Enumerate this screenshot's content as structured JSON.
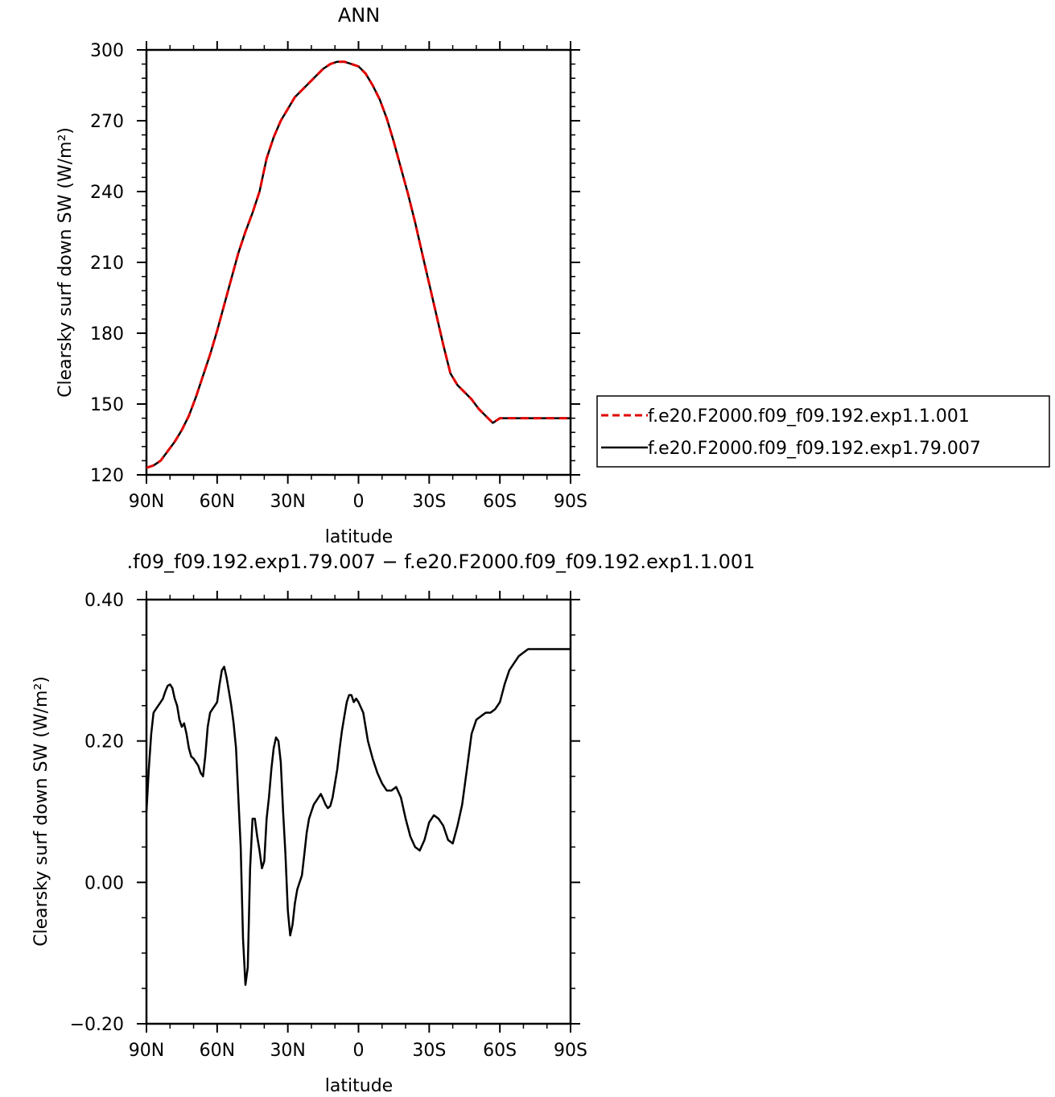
{
  "chart_data": [
    {
      "type": "line",
      "title": "ANN",
      "xlabel": "latitude",
      "ylabel": "Clearsky surf down SW (W/m²)",
      "xlim": [
        90,
        -90
      ],
      "ylim": [
        120,
        300
      ],
      "x_ticks": [
        90,
        60,
        30,
        0,
        -30,
        -60,
        -90
      ],
      "x_tick_labels": [
        "90N",
        "60N",
        "30N",
        "0",
        "30S",
        "60S",
        "90S"
      ],
      "y_ticks": [
        120,
        150,
        180,
        210,
        240,
        270,
        300
      ],
      "y_tick_labels": [
        "120",
        "150",
        "180",
        "210",
        "240",
        "270",
        "300"
      ],
      "grid": false,
      "legend_position": "right",
      "series": [
        {
          "name": "f.e20.F2000.f09_f09.192.exp1.1.001",
          "color": "#e00000",
          "style": "dashed",
          "x": [
            90,
            87,
            84,
            81,
            78,
            75,
            72,
            69,
            66,
            63,
            60,
            57,
            54,
            51,
            48,
            45,
            42,
            39,
            36,
            33,
            30,
            27,
            24,
            21,
            18,
            15,
            12,
            9,
            6,
            3,
            0,
            -3,
            -6,
            -9,
            -12,
            -15,
            -18,
            -21,
            -24,
            -27,
            -30,
            -33,
            -36,
            -39,
            -42,
            -45,
            -48,
            -51,
            -54,
            -57,
            -60,
            -63,
            -66,
            -69,
            -72,
            -75,
            -78,
            -81,
            -84,
            -87,
            -90
          ],
          "y": [
            123,
            124,
            126,
            130,
            134,
            139,
            145,
            153,
            162,
            171,
            181,
            192,
            203,
            214,
            223,
            231,
            240,
            254,
            263,
            270,
            275,
            280,
            283,
            286,
            289,
            292,
            294,
            295,
            295,
            294,
            293,
            290,
            285,
            279,
            271,
            261,
            250,
            239,
            227,
            214,
            201,
            188,
            175,
            163,
            158,
            155,
            152,
            148,
            145,
            142,
            144,
            144,
            144,
            144,
            144,
            144,
            144,
            144,
            144,
            144,
            144
          ]
        },
        {
          "name": "f.e20.F2000.f09_f09.192.exp1.79.007",
          "color": "#000000",
          "style": "solid",
          "x": [
            90,
            87,
            84,
            81,
            78,
            75,
            72,
            69,
            66,
            63,
            60,
            57,
            54,
            51,
            48,
            45,
            42,
            39,
            36,
            33,
            30,
            27,
            24,
            21,
            18,
            15,
            12,
            9,
            6,
            3,
            0,
            -3,
            -6,
            -9,
            -12,
            -15,
            -18,
            -21,
            -24,
            -27,
            -30,
            -33,
            -36,
            -39,
            -42,
            -45,
            -48,
            -51,
            -54,
            -57,
            -60,
            -63,
            -66,
            -69,
            -72,
            -75,
            -78,
            -81,
            -84,
            -87,
            -90
          ],
          "y": [
            123,
            124,
            126,
            130,
            134,
            139,
            145,
            153,
            162,
            171,
            181,
            192,
            203,
            214,
            223,
            231,
            240,
            254,
            263,
            270,
            275,
            280,
            283,
            286,
            289,
            292,
            294,
            295,
            295,
            294,
            293,
            290,
            285,
            279,
            271,
            261,
            250,
            239,
            227,
            214,
            201,
            188,
            175,
            163,
            158,
            155,
            152,
            148,
            145,
            142,
            144,
            144,
            144,
            144,
            144,
            144,
            144,
            144,
            144,
            144,
            144
          ]
        }
      ]
    },
    {
      "type": "line",
      "title": ".f09_f09.192.exp1.79.007 − f.e20.F2000.f09_f09.192.exp1.1.001",
      "xlabel": "latitude",
      "ylabel": "Clearsky surf down SW (W/m²)",
      "xlim": [
        90,
        -90
      ],
      "ylim": [
        -0.2,
        0.4
      ],
      "x_ticks": [
        90,
        60,
        30,
        0,
        -30,
        -60,
        -90
      ],
      "x_tick_labels": [
        "90N",
        "60N",
        "30N",
        "0",
        "30S",
        "60S",
        "90S"
      ],
      "y_ticks": [
        -0.2,
        0.0,
        0.2,
        0.4
      ],
      "y_tick_labels": [
        "−0.20",
        "0.00",
        "0.20",
        "0.40"
      ],
      "grid": false,
      "series": [
        {
          "color": "#000000",
          "style": "solid",
          "x": [
            90,
            89,
            88,
            87,
            86,
            85,
            84,
            83,
            82,
            81,
            80,
            79,
            78,
            77,
            76,
            75,
            74,
            73,
            72,
            71,
            70,
            69,
            68,
            67,
            66,
            65,
            64,
            63,
            62,
            61,
            60,
            59,
            58,
            57,
            56,
            55,
            54,
            53,
            52,
            51,
            50,
            49,
            48,
            47,
            46,
            45,
            44,
            43,
            42,
            41,
            40,
            39,
            38,
            37,
            36,
            35,
            34,
            33,
            32,
            31,
            30,
            29,
            28,
            27,
            26,
            25,
            24,
            23,
            22,
            21,
            20,
            19,
            18,
            17,
            16,
            15,
            14,
            13,
            12,
            11,
            10,
            9,
            8,
            7,
            6,
            5,
            4,
            3,
            2,
            1,
            0,
            -2,
            -4,
            -6,
            -8,
            -10,
            -12,
            -14,
            -16,
            -18,
            -20,
            -22,
            -24,
            -26,
            -28,
            -30,
            -32,
            -34,
            -36,
            -38,
            -40,
            -42,
            -44,
            -46,
            -48,
            -50,
            -52,
            -54,
            -56,
            -58,
            -60,
            -62,
            -64,
            -66,
            -68,
            -70,
            -72,
            -74,
            -76,
            -78,
            -80,
            -82,
            -84,
            -86,
            -88,
            -90
          ],
          "y": [
            0.1,
            0.16,
            0.21,
            0.24,
            0.245,
            0.25,
            0.255,
            0.26,
            0.27,
            0.278,
            0.28,
            0.275,
            0.26,
            0.25,
            0.23,
            0.22,
            0.225,
            0.21,
            0.19,
            0.178,
            0.175,
            0.17,
            0.165,
            0.155,
            0.15,
            0.18,
            0.22,
            0.24,
            0.245,
            0.25,
            0.255,
            0.28,
            0.3,
            0.305,
            0.29,
            0.27,
            0.25,
            0.225,
            0.19,
            0.12,
            0.05,
            -0.08,
            -0.145,
            -0.12,
            0.02,
            0.09,
            0.09,
            0.065,
            0.045,
            0.02,
            0.03,
            0.09,
            0.12,
            0.16,
            0.19,
            0.205,
            0.2,
            0.17,
            0.1,
            0.04,
            -0.04,
            -0.075,
            -0.06,
            -0.03,
            -0.01,
            0.0,
            0.01,
            0.04,
            0.07,
            0.09,
            0.1,
            0.11,
            0.115,
            0.12,
            0.125,
            0.118,
            0.11,
            0.105,
            0.108,
            0.12,
            0.14,
            0.16,
            0.19,
            0.215,
            0.235,
            0.255,
            0.265,
            0.265,
            0.255,
            0.26,
            0.255,
            0.24,
            0.2,
            0.175,
            0.155,
            0.14,
            0.13,
            0.13,
            0.135,
            0.12,
            0.09,
            0.065,
            0.05,
            0.045,
            0.06,
            0.085,
            0.095,
            0.09,
            0.08,
            0.06,
            0.055,
            0.08,
            0.11,
            0.16,
            0.21,
            0.23,
            0.235,
            0.24,
            0.24,
            0.245,
            0.255,
            0.28,
            0.3,
            0.31,
            0.32,
            0.325,
            0.33,
            0.33,
            0.33,
            0.33,
            0.33,
            0.33,
            0.33,
            0.33,
            0.33,
            0.33
          ]
        }
      ]
    }
  ]
}
